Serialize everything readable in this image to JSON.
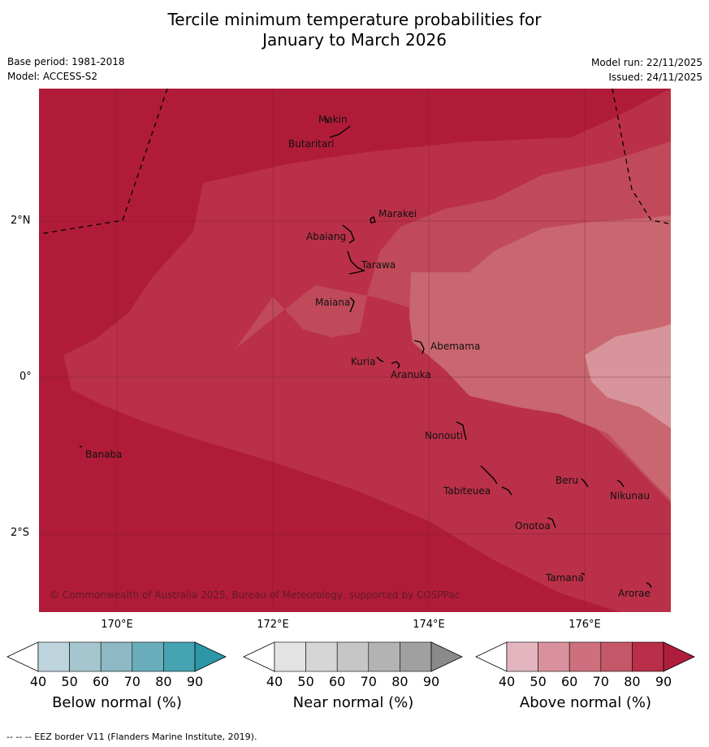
{
  "title_line1": "Tercile minimum temperature probabilities for",
  "title_line2": "January to March 2026",
  "base_period": "Base period: 1981-2018",
  "model": "Model: ACCESS-S2",
  "model_run": "Model run: 22/11/2025",
  "issued": "Issued: 24/11/2025",
  "copyright": "© Commonwealth of Australia 2025, Bureau of Meteorology, supported by COSPPac",
  "footer": "--  --  -- EEZ border V11 (Flanders Marine Institute, 2019).",
  "lat_labels": [
    "2°N",
    "0°",
    "2°S"
  ],
  "lon_labels": [
    "170°E",
    "172°E",
    "174°E",
    "176°E"
  ],
  "islands": [
    "Makin",
    "Butaritari",
    "Marakei",
    "Abaiang",
    "Tarawa",
    "Maiana",
    "Abemama",
    "Kuria",
    "Aranuka",
    "Banaba",
    "Nonouti",
    "Tabiteuea",
    "Beru",
    "Nikunau",
    "Onotoa",
    "Tamana",
    "Arorae"
  ],
  "colorbars": [
    {
      "label": "Below normal (%)",
      "ticks": [
        "40",
        "50",
        "60",
        "70",
        "80",
        "90"
      ],
      "colors": [
        "#bdd4dc",
        "#a6c6cf",
        "#8db8c4",
        "#6aaebb",
        "#45a3b2",
        "#2b97a7"
      ]
    },
    {
      "label": "Near normal (%)",
      "ticks": [
        "40",
        "50",
        "60",
        "70",
        "80",
        "90"
      ],
      "colors": [
        "#e3e3e3",
        "#d6d6d6",
        "#c6c6c6",
        "#b3b3b3",
        "#a0a0a0",
        "#8a8a8a"
      ]
    },
    {
      "label": "Above normal (%)",
      "ticks": [
        "40",
        "50",
        "60",
        "70",
        "80",
        "90"
      ],
      "colors": [
        "#e3b6bf",
        "#d9919d",
        "#cd6f7c",
        "#c45868",
        "#b92e48",
        "#b01c3c"
      ]
    }
  ],
  "region_colors": {
    "p90": "#b01c38",
    "p80": "#ba3048",
    "p70": "#c04a59",
    "p60": "#c9666f",
    "p50": "#d8949b"
  }
}
